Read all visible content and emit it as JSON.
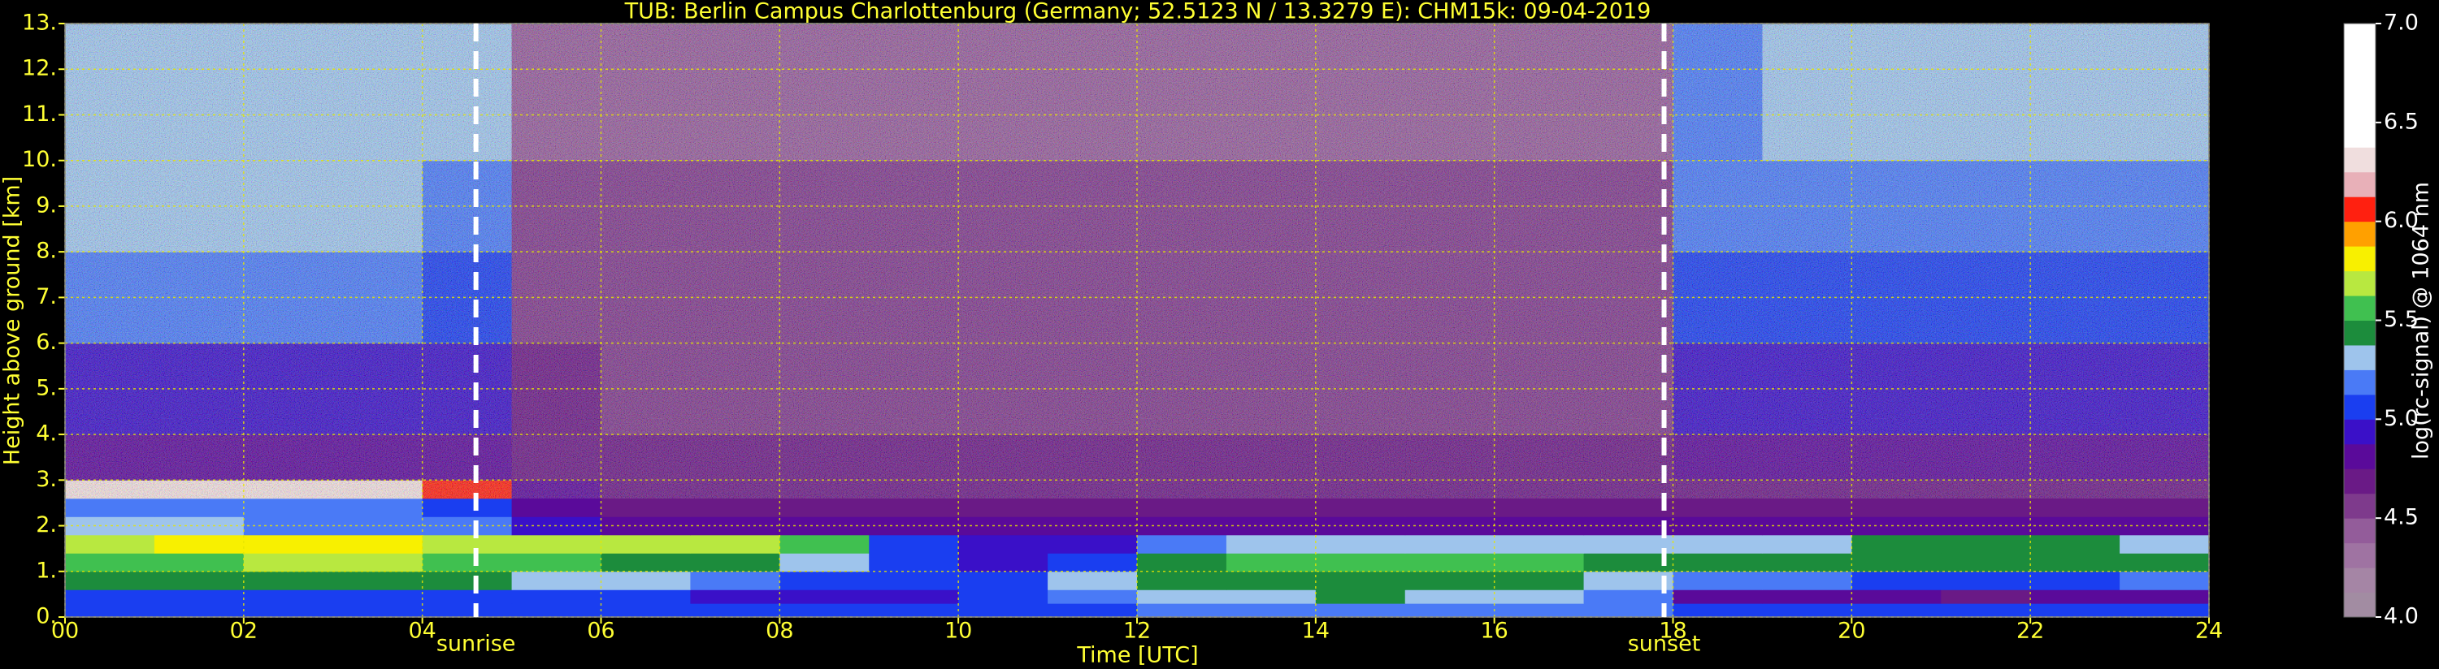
{
  "chart_data": {
    "type": "heatmap",
    "title": "TUB: Berlin Campus Charlottenburg (Germany; 52.5123 N / 13.3279 E):    CHM15k: 09-04-2019",
    "x_label": "Time [UTC]",
    "y_label": "Height above ground [km]",
    "colorbar_label": "log(rc-signal) @ 1064 nm",
    "x": [
      0,
      1,
      2,
      3,
      4,
      5,
      6,
      7,
      8,
      9,
      10,
      11,
      12,
      13,
      14,
      15,
      16,
      17,
      18,
      19,
      20,
      21,
      22,
      23,
      24
    ],
    "y": [
      0,
      0.3,
      0.6,
      1,
      1.4,
      1.8,
      2.2,
      2.6,
      3,
      4,
      6,
      8,
      10,
      13
    ],
    "values": [
      [
        5.1,
        5.1,
        5.1,
        5.1,
        5.0,
        5.0,
        5.0,
        5.0,
        5.0,
        5.0,
        5.1,
        5.1,
        5.2,
        5.2,
        5.2,
        5.2,
        5.2,
        5.2,
        5.1,
        5.1,
        5.1,
        5.1,
        5.1,
        5.1
      ],
      [
        5.0,
        5.0,
        5.0,
        5.0,
        5.0,
        5.0,
        5.0,
        4.95,
        4.95,
        4.95,
        5.1,
        5.2,
        5.3,
        5.3,
        5.4,
        5.35,
        5.3,
        5.2,
        4.8,
        4.75,
        4.75,
        4.7,
        4.75,
        4.85
      ],
      [
        5.4,
        5.4,
        5.45,
        5.45,
        5.4,
        5.35,
        5.3,
        5.2,
        5.1,
        5.0,
        5.05,
        5.3,
        5.4,
        5.45,
        5.45,
        5.4,
        5.4,
        5.35,
        5.15,
        5.15,
        5.1,
        5.1,
        5.1,
        5.15
      ],
      [
        5.6,
        5.6,
        5.65,
        5.7,
        5.6,
        5.5,
        5.45,
        5.4,
        5.35,
        5.1,
        4.9,
        5.0,
        5.4,
        5.55,
        5.6,
        5.5,
        5.5,
        5.45,
        5.4,
        5.4,
        5.45,
        5.45,
        5.45,
        5.4
      ],
      [
        5.7,
        5.75,
        5.85,
        5.8,
        5.7,
        5.7,
        5.7,
        5.65,
        5.6,
        5.1,
        4.9,
        4.95,
        5.15,
        5.3,
        5.3,
        5.25,
        5.3,
        5.25,
        5.35,
        5.35,
        5.4,
        5.4,
        5.4,
        5.35
      ],
      [
        5.25,
        5.25,
        5.2,
        5.2,
        5.15,
        4.9,
        4.8,
        4.8,
        4.8,
        4.75,
        4.75,
        4.75,
        4.75,
        4.8,
        4.8,
        4.8,
        4.75,
        4.75,
        4.75,
        4.75,
        4.75,
        4.75,
        4.75,
        4.75
      ],
      [
        5.2,
        5.2,
        5.15,
        5.15,
        5.1,
        4.75,
        4.7,
        4.7,
        4.7,
        4.7,
        4.7,
        4.7,
        4.7,
        4.7,
        4.7,
        4.7,
        4.7,
        4.7,
        4.72,
        4.72,
        4.72,
        4.72,
        4.72,
        4.72
      ],
      [
        6.3,
        6.35,
        6.3,
        6.25,
        6.0,
        4.8,
        4.7,
        4.7,
        4.7,
        4.7,
        4.7,
        4.7,
        4.7,
        4.7,
        4.7,
        4.7,
        4.7,
        4.7,
        4.7,
        4.7,
        4.7,
        4.7,
        4.7,
        4.7
      ],
      [
        4.8,
        4.8,
        4.8,
        4.8,
        4.78,
        4.65,
        4.65,
        4.65,
        4.65,
        4.65,
        4.65,
        4.65,
        4.65,
        4.65,
        4.65,
        4.65,
        4.65,
        4.65,
        4.75,
        4.78,
        4.78,
        4.78,
        4.78,
        4.78
      ],
      [
        4.95,
        4.95,
        4.95,
        4.95,
        4.9,
        4.65,
        4.62,
        4.62,
        4.62,
        4.62,
        4.62,
        4.62,
        4.62,
        4.62,
        4.62,
        4.62,
        4.62,
        4.62,
        4.88,
        4.9,
        4.9,
        4.9,
        4.9,
        4.9
      ],
      [
        5.2,
        5.2,
        5.2,
        5.2,
        5.1,
        4.55,
        4.55,
        4.55,
        4.55,
        4.55,
        4.55,
        4.55,
        4.55,
        4.55,
        4.55,
        4.55,
        4.55,
        4.55,
        5.05,
        5.1,
        5.1,
        5.1,
        5.1,
        5.1
      ],
      [
        5.3,
        5.3,
        5.3,
        5.3,
        5.2,
        4.5,
        4.5,
        4.5,
        4.5,
        4.5,
        4.5,
        4.5,
        4.5,
        4.5,
        4.5,
        4.5,
        4.5,
        4.5,
        5.15,
        5.2,
        5.2,
        5.2,
        5.2,
        5.2
      ],
      [
        5.3,
        5.3,
        5.3,
        5.3,
        5.25,
        4.45,
        4.45,
        4.45,
        4.45,
        4.45,
        4.45,
        4.45,
        4.45,
        4.45,
        4.45,
        4.45,
        4.45,
        4.45,
        5.2,
        5.25,
        5.25,
        5.25,
        5.25,
        5.25
      ]
    ],
    "xlim": [
      0,
      24
    ],
    "ylim": [
      0,
      13
    ],
    "xticks": [
      {
        "value": 0,
        "label": "00"
      },
      {
        "value": 2,
        "label": "02"
      },
      {
        "value": 4,
        "label": "04"
      },
      {
        "value": 6,
        "label": "06"
      },
      {
        "value": 8,
        "label": "08"
      },
      {
        "value": 10,
        "label": "10"
      },
      12,
      14,
      16,
      18,
      20,
      22,
      24
    ],
    "yticks": [
      {
        "value": 0,
        "label": "0."
      },
      {
        "value": 1,
        "label": "1."
      },
      {
        "value": 2,
        "label": "2."
      },
      {
        "value": 3,
        "label": "3."
      },
      {
        "value": 4,
        "label": "4."
      },
      {
        "value": 5,
        "label": "5."
      },
      {
        "value": 6,
        "label": "6."
      },
      {
        "value": 7,
        "label": "7."
      },
      {
        "value": 8,
        "label": "8."
      },
      {
        "value": 9,
        "label": "9."
      },
      {
        "value": 10,
        "label": "10."
      },
      {
        "value": 11,
        "label": "11."
      },
      {
        "value": 12,
        "label": "12."
      },
      {
        "value": 13,
        "label": "13."
      }
    ],
    "zlim": [
      4,
      7
    ],
    "zticks": [
      {
        "value": 4,
        "label": "4.0"
      },
      {
        "value": 4.5,
        "label": "4.5"
      },
      {
        "value": 5,
        "label": "5.0"
      },
      {
        "value": 5.5,
        "label": "5.5"
      },
      {
        "value": 6,
        "label": "6.0"
      },
      {
        "value": 6.5,
        "label": "6.5"
      },
      {
        "value": 7,
        "label": "7.0"
      }
    ],
    "colors": [
      "#a28ca2",
      "#a585a5",
      "#9f73a2",
      "#935c9a",
      "#7e3a8c",
      "#6a1a86",
      "#5a0a9a",
      "#3a10c8",
      "#1a3ef0",
      "#4a7af6",
      "#9ec4ec",
      "#1c8c3c",
      "#40c050",
      "#b8e840",
      "#f8f000",
      "#ffa000",
      "#ff2010",
      "#e8b0b8",
      "#f0dede",
      "#ffffff",
      "#ffffff",
      "#ffffff",
      "#ffffff",
      "#ffffff"
    ],
    "grid": true,
    "annotations": [
      {
        "text": "sunrise",
        "x": 4.6
      },
      {
        "text": "sunset",
        "x": 17.9
      }
    ]
  }
}
